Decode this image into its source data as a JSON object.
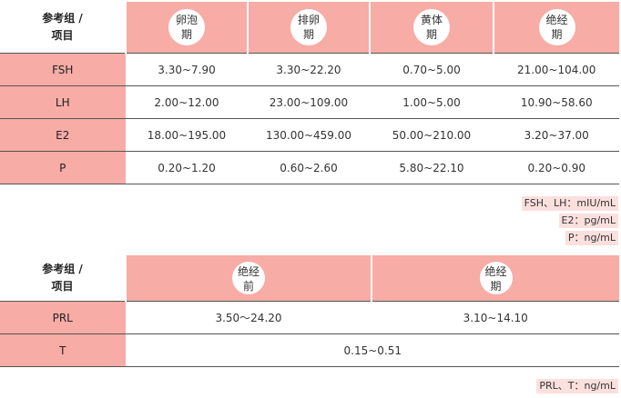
{
  "table1": {
    "corner": [
      "参考组 /",
      "项目"
    ],
    "columns": [
      [
        "卵泡",
        "期"
      ],
      [
        "排卵",
        "期"
      ],
      [
        "黄体",
        "期"
      ],
      [
        "绝经",
        "期"
      ]
    ],
    "rows": [
      {
        "label": "FSH",
        "values": [
          "3.30~7.90",
          "3.30~22.20",
          "0.70~5.00",
          "21.00~104.00"
        ]
      },
      {
        "label": "LH",
        "values": [
          "2.00~12.00",
          "23.00~109.00",
          "1.00~5.00",
          "10.90~58.60"
        ]
      },
      {
        "label": "E2",
        "values": [
          "18.00~195.00",
          "130.00~459.00",
          "50.00~210.00",
          "3.20~37.00"
        ]
      },
      {
        "label": "P",
        "values": [
          "0.20~1.20",
          "0.60~2.60",
          "5.80~22.10",
          "0.20~0.90"
        ]
      }
    ],
    "units": [
      "FSH、LH：mIU/mL",
      "E2：pg/mL",
      "P：ng/mL"
    ]
  },
  "table2": {
    "corner": [
      "参考组 /",
      "项目"
    ],
    "columns": [
      [
        "绝经",
        "前"
      ],
      [
        "绝经",
        "期"
      ]
    ],
    "rows": [
      {
        "label": "PRL",
        "values": [
          "3.50～24.20",
          "3.10~14.10"
        ]
      },
      {
        "label": "T",
        "value": "0.15~0.51"
      }
    ],
    "units": [
      "PRL、T：ng/mL"
    ]
  }
}
